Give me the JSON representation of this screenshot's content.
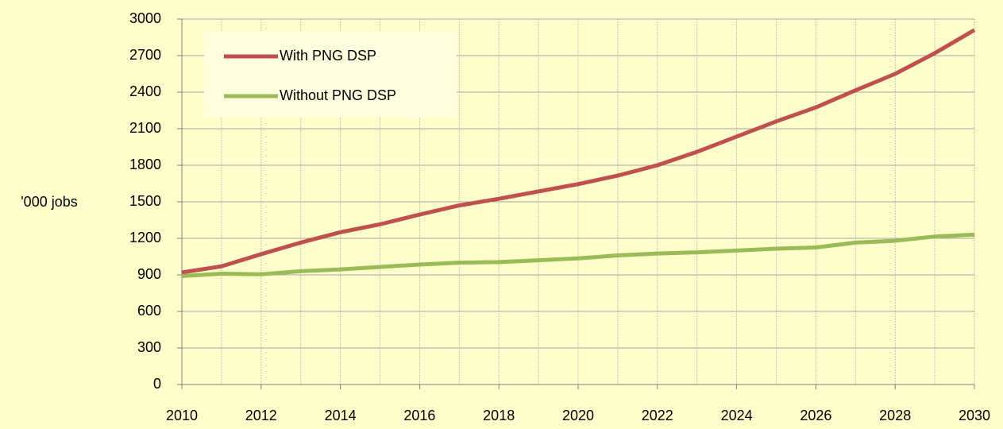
{
  "chart_data": {
    "type": "line",
    "y_label": "'000 jobs",
    "x": [
      2010,
      2011,
      2012,
      2013,
      2014,
      2015,
      2016,
      2017,
      2018,
      2019,
      2020,
      2021,
      2022,
      2023,
      2024,
      2025,
      2026,
      2027,
      2028,
      2029,
      2030
    ],
    "series": [
      {
        "name": "With PNG DSP",
        "color": "#c0504d",
        "values": [
          920,
          970,
          1070,
          1165,
          1250,
          1315,
          1395,
          1470,
          1525,
          1585,
          1645,
          1715,
          1800,
          1910,
          2035,
          2160,
          2275,
          2415,
          2550,
          2720,
          2910
        ]
      },
      {
        "name": "Without PNG DSP",
        "color": "#9bbb59",
        "values": [
          890,
          910,
          905,
          930,
          945,
          965,
          985,
          1000,
          1005,
          1020,
          1035,
          1060,
          1075,
          1085,
          1100,
          1115,
          1125,
          1165,
          1180,
          1215,
          1230
        ]
      }
    ],
    "xlim": [
      2010,
      2030
    ],
    "xticks": [
      2010,
      2012,
      2014,
      2016,
      2018,
      2020,
      2022,
      2024,
      2026,
      2028,
      2030
    ],
    "ylim": [
      0,
      3000
    ],
    "yticks": [
      0,
      300,
      600,
      900,
      1200,
      1500,
      1800,
      2100,
      2400,
      2700,
      3000
    ],
    "grid": true,
    "legend": "top-left"
  }
}
